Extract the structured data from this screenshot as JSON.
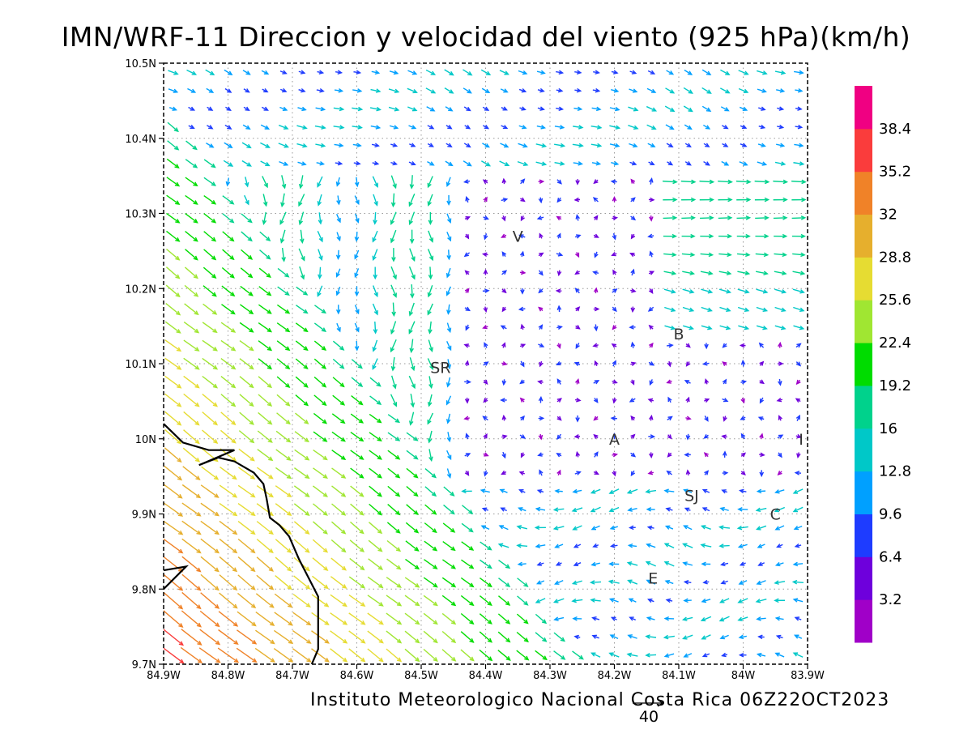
{
  "title": "IMN/WRF-11 Direccion y velocidad del viento (925 hPa)(km/h)",
  "footer": "Instituto Meteorologico Nacional Costa Rica 06Z22OCT2023",
  "map": {
    "lon_range": [
      -84.9,
      -83.9
    ],
    "lat_range": [
      9.7,
      10.5
    ],
    "grid": "dotted",
    "x_tick_labels": [
      "84.9W",
      "84.8W",
      "84.7W",
      "84.6W",
      "84.5W",
      "84.4W",
      "84.3W",
      "84.2W",
      "84.1W",
      "84W",
      "83.9W"
    ],
    "y_tick_labels": [
      "9.7N",
      "9.8N",
      "9.9N",
      "10N",
      "10.1N",
      "10.2N",
      "10.3N",
      "10.4N",
      "10.5N"
    ],
    "places": [
      {
        "label": "V",
        "lon": -84.35,
        "lat": 10.27
      },
      {
        "label": "SR",
        "lon": -84.47,
        "lat": 10.095
      },
      {
        "label": "B",
        "lon": -84.1,
        "lat": 10.14
      },
      {
        "label": "A",
        "lon": -84.2,
        "lat": 10.0
      },
      {
        "label": "I",
        "lon": -83.91,
        "lat": 10.0
      },
      {
        "label": "SJ",
        "lon": -84.08,
        "lat": 9.925
      },
      {
        "label": "C",
        "lon": -83.95,
        "lat": 9.9
      },
      {
        "label": "E",
        "lon": -84.14,
        "lat": 9.815
      }
    ]
  },
  "legend": {
    "labels": [
      "3.2",
      "6.4",
      "9.6",
      "12.8",
      "16",
      "19.2",
      "22.4",
      "25.6",
      "28.8",
      "32",
      "35.2",
      "38.4"
    ],
    "colors": [
      "#a000c8",
      "#6e00dc",
      "#1e3cff",
      "#00a0ff",
      "#00c8c8",
      "#00d28c",
      "#00dc00",
      "#a0e632",
      "#e6dc32",
      "#e6af2d",
      "#f08228",
      "#fa3c3c",
      "#f00082"
    ]
  },
  "reference_vector": {
    "label": "40"
  },
  "coastline": [
    [
      [
        -84.9,
        10.02
      ],
      [
        -84.87,
        9.995
      ],
      [
        -84.83,
        9.985
      ],
      [
        -84.79,
        9.985
      ],
      [
        -84.845,
        9.965
      ],
      [
        -84.815,
        9.975
      ],
      [
        -84.79,
        9.97
      ],
      [
        -84.76,
        9.955
      ],
      [
        -84.745,
        9.94
      ],
      [
        -84.74,
        9.92
      ],
      [
        -84.735,
        9.895
      ],
      [
        -84.72,
        9.885
      ],
      [
        -84.705,
        9.87
      ],
      [
        -84.69,
        9.84
      ],
      [
        -84.675,
        9.815
      ],
      [
        -84.66,
        9.79
      ],
      [
        -84.66,
        9.77
      ],
      [
        -84.66,
        9.74
      ],
      [
        -84.66,
        9.72
      ],
      [
        -84.67,
        9.7
      ]
    ],
    [
      [
        -84.9,
        9.825
      ],
      [
        -84.865,
        9.83
      ],
      [
        -84.9,
        9.8
      ]
    ]
  ]
}
